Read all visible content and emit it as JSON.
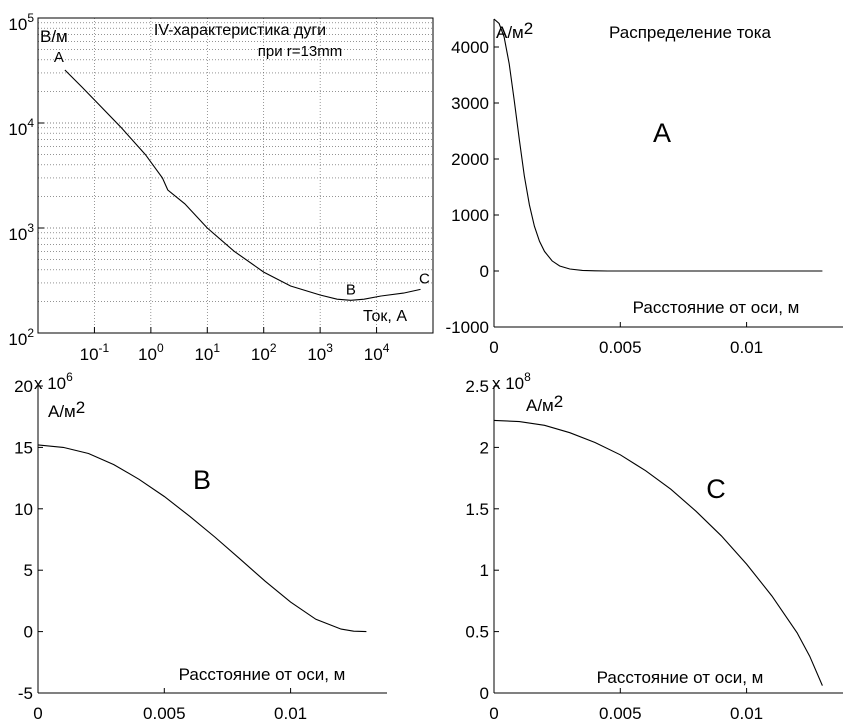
{
  "figure": {
    "panel_iv": {
      "chart_data": {
        "type": "line",
        "title_lines": [
          "IV-характеристика дуги",
          "при r=13mm"
        ],
        "xlabel": "Ток, А",
        "ylabel": "В/м",
        "xscale": "log",
        "yscale": "log",
        "xlim": [
          0.01,
          100000
        ],
        "ylim": [
          100,
          100000
        ],
        "x_ticks": [
          {
            "base": "10",
            "exp": "-1",
            "value": 0.1
          },
          {
            "base": "10",
            "exp": "0",
            "value": 1
          },
          {
            "base": "10",
            "exp": "1",
            "value": 10
          },
          {
            "base": "10",
            "exp": "2",
            "value": 100
          },
          {
            "base": "10",
            "exp": "3",
            "value": 1000
          },
          {
            "base": "10",
            "exp": "4",
            "value": 10000
          }
        ],
        "y_ticks": [
          {
            "base": "10",
            "exp": "2",
            "value": 100
          },
          {
            "base": "10",
            "exp": "3",
            "value": 1000
          },
          {
            "base": "10",
            "exp": "4",
            "value": 10000
          },
          {
            "base": "10",
            "exp": "5",
            "value": 100000
          }
        ],
        "grid": true,
        "series": [
          {
            "x": [
              0.03,
              0.06,
              0.12,
              0.3,
              0.8,
              1.6,
              2.0,
              4,
              10,
              30,
              100,
              300,
              1000,
              2000,
              3500,
              6000,
              12000,
              30000,
              60000
            ],
            "y": [
              32000,
              22000,
              15000,
              9000,
              5000,
              3000,
              2300,
              1700,
              1000,
              600,
              380,
              280,
              230,
              210,
              205,
              210,
              225,
              240,
              260
            ]
          }
        ],
        "annotations": [
          {
            "text": "A",
            "x": 0.03,
            "y": 32000
          },
          {
            "text": "B",
            "x": 3500,
            "y": 205
          },
          {
            "text": "C",
            "x": 60000,
            "y": 260
          }
        ]
      }
    },
    "panel_a": {
      "chart_data": {
        "type": "line",
        "title": "Распределение тока",
        "panel_label": "A",
        "xlabel": "Расстояние от оси, м",
        "ylabel": "А/м2",
        "xlim": [
          0,
          0.0135
        ],
        "ylim": [
          -1000,
          4500
        ],
        "x_ticks": [
          "0",
          "0.005",
          "0.01"
        ],
        "x_tick_values": [
          0,
          0.005,
          0.01
        ],
        "y_ticks": [
          "-1000",
          "0",
          "1000",
          "2000",
          "3000",
          "4000"
        ],
        "y_tick_values": [
          -1000,
          0,
          1000,
          2000,
          3000,
          4000
        ],
        "grid": false,
        "series": [
          {
            "x": [
              0,
              0.0002,
              0.0004,
              0.0006,
              0.0008,
              0.001,
              0.0012,
              0.0014,
              0.0016,
              0.0018,
              0.002,
              0.0023,
              0.0026,
              0.003,
              0.0035,
              0.004,
              0.0045,
              0.006,
              0.008,
              0.01,
              0.012,
              0.013
            ],
            "y": [
              4500,
              4420,
              4180,
              3700,
              3050,
              2350,
              1700,
              1180,
              800,
              530,
              350,
              180,
              90,
              35,
              10,
              3,
              0,
              0,
              0,
              0,
              0,
              0
            ]
          }
        ]
      }
    },
    "panel_b": {
      "chart_data": {
        "type": "line",
        "panel_label": "B",
        "xlabel": "Расстояние от оси, м",
        "ylabel": "А/м2",
        "multiplier": {
          "base": "x 10",
          "exp": "6"
        },
        "xlim": [
          0,
          0.0135
        ],
        "ylim": [
          -5,
          20
        ],
        "x_ticks": [
          "0",
          "0.005",
          "0.01"
        ],
        "x_tick_values": [
          0,
          0.005,
          0.01
        ],
        "y_ticks": [
          "-5",
          "0",
          "5",
          "10",
          "15",
          "20"
        ],
        "y_tick_values": [
          -5,
          0,
          5,
          10,
          15,
          20
        ],
        "grid": false,
        "series": [
          {
            "x": [
              0,
              0.001,
              0.002,
              0.003,
              0.004,
              0.005,
              0.006,
              0.007,
              0.008,
              0.009,
              0.01,
              0.011,
              0.012,
              0.0125,
              0.013
            ],
            "y": [
              15.2,
              15.0,
              14.5,
              13.6,
              12.4,
              11.0,
              9.4,
              7.7,
              5.9,
              4.1,
              2.4,
              1.0,
              0.2,
              0.03,
              0
            ]
          }
        ]
      }
    },
    "panel_c": {
      "chart_data": {
        "type": "line",
        "panel_label": "C",
        "xlabel": "Расстояние от оси, м",
        "ylabel": "А/м2",
        "multiplier": {
          "base": "x 10",
          "exp": "8"
        },
        "xlim": [
          0,
          0.0135
        ],
        "ylim": [
          0,
          2.5
        ],
        "x_ticks": [
          "0",
          "0.005",
          "0.01"
        ],
        "x_tick_values": [
          0,
          0.005,
          0.01
        ],
        "y_ticks": [
          "0",
          "0.5",
          "1",
          "1.5",
          "2",
          "2.5"
        ],
        "y_tick_values": [
          0,
          0.5,
          1,
          1.5,
          2,
          2.5
        ],
        "grid": false,
        "series": [
          {
            "x": [
              0,
              0.001,
              0.002,
              0.003,
              0.004,
              0.005,
              0.006,
              0.007,
              0.008,
              0.009,
              0.01,
              0.011,
              0.012,
              0.0125,
              0.013
            ],
            "y": [
              2.22,
              2.21,
              2.18,
              2.12,
              2.04,
              1.94,
              1.81,
              1.66,
              1.48,
              1.28,
              1.05,
              0.79,
              0.49,
              0.3,
              0.06
            ]
          }
        ]
      }
    }
  }
}
